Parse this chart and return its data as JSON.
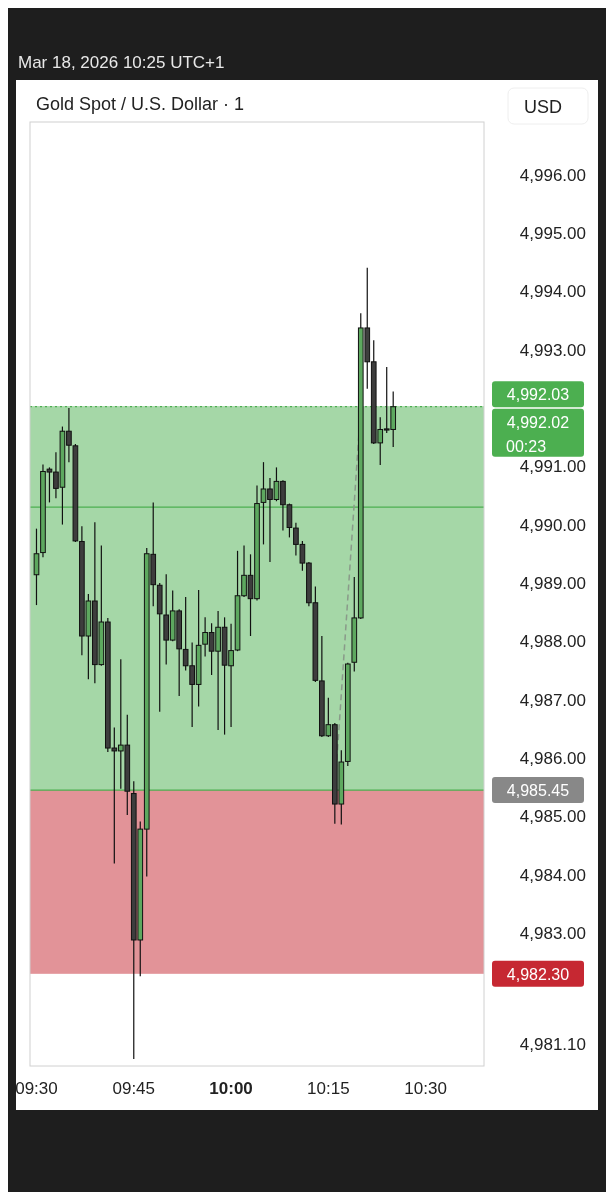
{
  "chart_data": {
    "type": "candlestick",
    "title": "Gold Spot / U.S. Dollar · 1",
    "subtitle": "Mar 18, 2026 10:25 UTC+1",
    "annotations": [
      "USD",
      "00:23"
    ],
    "x": [
      "2026-03-18T09:30",
      "2026-03-18T09:31",
      "2026-03-18T09:32",
      "2026-03-18T09:33",
      "2026-03-18T09:34",
      "2026-03-18T09:35",
      "2026-03-18T09:36",
      "2026-03-18T09:37",
      "2026-03-18T09:38",
      "2026-03-18T09:39",
      "2026-03-18T09:40",
      "2026-03-18T09:41",
      "2026-03-18T09:42",
      "2026-03-18T09:43",
      "2026-03-18T09:44",
      "2026-03-18T09:45",
      "2026-03-18T09:46",
      "2026-03-18T09:47",
      "2026-03-18T09:48",
      "2026-03-18T09:49",
      "2026-03-18T09:50",
      "2026-03-18T09:51",
      "2026-03-18T09:52",
      "2026-03-18T09:53",
      "2026-03-18T09:54",
      "2026-03-18T09:55",
      "2026-03-18T09:56",
      "2026-03-18T09:57",
      "2026-03-18T09:58",
      "2026-03-18T09:59",
      "2026-03-18T10:00",
      "2026-03-18T10:01",
      "2026-03-18T10:02",
      "2026-03-18T10:03",
      "2026-03-18T10:04",
      "2026-03-18T10:05",
      "2026-03-18T10:06",
      "2026-03-18T10:07",
      "2026-03-18T10:08",
      "2026-03-18T10:09",
      "2026-03-18T10:10",
      "2026-03-18T10:11",
      "2026-03-18T10:12",
      "2026-03-18T10:13",
      "2026-03-18T10:14",
      "2026-03-18T10:15",
      "2026-03-18T10:16",
      "2026-03-18T10:17",
      "2026-03-18T10:18",
      "2026-03-18T10:19",
      "2026-03-18T10:20",
      "2026-03-18T10:21",
      "2026-03-18T10:22",
      "2026-03-18T10:23",
      "2026-03-18T10:24",
      "2026-03-18T10:25"
    ],
    "ohlc": [
      [
        4989.14,
        4989.93,
        4988.62,
        4989.5
      ],
      [
        4989.52,
        4991.03,
        4989.44,
        4990.91
      ],
      [
        4990.95,
        4990.98,
        4990.38,
        4990.9
      ],
      [
        4990.9,
        4991.24,
        4990.45,
        4990.62
      ],
      [
        4990.64,
        4991.68,
        4990.0,
        4991.6
      ],
      [
        4991.6,
        4992.0,
        4991.07,
        4991.36
      ],
      [
        4991.35,
        4991.38,
        4989.7,
        4989.72
      ],
      [
        4989.71,
        4989.97,
        4987.76,
        4988.09
      ],
      [
        4988.09,
        4988.81,
        4987.35,
        4988.69
      ],
      [
        4988.69,
        4990.04,
        4987.28,
        4987.6
      ],
      [
        4987.6,
        4989.64,
        4987.58,
        4988.33
      ],
      [
        4988.33,
        4988.4,
        4986.1,
        4986.17
      ],
      [
        4986.17,
        4986.52,
        4984.19,
        4986.12
      ],
      [
        4986.12,
        4987.69,
        4985.47,
        4986.22
      ],
      [
        4986.22,
        4986.74,
        4985.02,
        4985.43
      ],
      [
        4985.39,
        4985.6,
        4980.84,
        4982.88
      ],
      [
        4982.88,
        4984.91,
        4982.26,
        4984.78
      ],
      [
        4984.78,
        4989.6,
        4983.97,
        4989.5
      ],
      [
        4989.49,
        4990.38,
        4988.6,
        4988.97
      ],
      [
        4988.96,
        4989.0,
        4986.79,
        4988.47
      ],
      [
        4988.45,
        4989.15,
        4987.6,
        4988.02
      ],
      [
        4988.02,
        4988.87,
        4988.0,
        4988.52
      ],
      [
        4988.52,
        4988.55,
        4987.06,
        4987.87
      ],
      [
        4987.86,
        4988.76,
        4987.5,
        4987.58
      ],
      [
        4987.58,
        4987.98,
        4986.53,
        4987.26
      ],
      [
        4987.26,
        4988.88,
        4986.88,
        4987.93
      ],
      [
        4987.95,
        4988.41,
        4987.74,
        4988.15
      ],
      [
        4988.15,
        4988.31,
        4987.42,
        4987.83
      ],
      [
        4987.83,
        4988.52,
        4986.48,
        4988.24
      ],
      [
        4988.24,
        4988.41,
        4986.4,
        4987.59
      ],
      [
        4987.58,
        4988.3,
        4986.53,
        4987.84
      ],
      [
        4987.85,
        4989.55,
        4987.83,
        4988.78
      ],
      [
        4988.78,
        4989.64,
        4988.76,
        4989.13
      ],
      [
        4989.13,
        4989.49,
        4988.09,
        4988.73
      ],
      [
        4988.73,
        4990.67,
        4988.7,
        4990.36
      ],
      [
        4990.38,
        4991.07,
        4989.66,
        4990.61
      ],
      [
        4990.61,
        4990.8,
        4989.36,
        4990.43
      ],
      [
        4990.43,
        4990.98,
        4990.4,
        4990.74
      ],
      [
        4990.74,
        4990.76,
        4989.9,
        4990.34
      ],
      [
        4990.34,
        4990.36,
        4989.78,
        4989.95
      ],
      [
        4989.94,
        4990.03,
        4989.47,
        4989.66
      ],
      [
        4989.66,
        4989.72,
        4989.21,
        4989.34
      ],
      [
        4989.34,
        4989.36,
        4988.6,
        4988.66
      ],
      [
        4988.66,
        4988.94,
        4987.3,
        4987.33
      ],
      [
        4987.32,
        4988.09,
        4986.36,
        4986.38
      ],
      [
        4986.38,
        4987.03,
        4986.36,
        4986.57
      ],
      [
        4986.57,
        4986.6,
        4984.87,
        4985.21
      ],
      [
        4985.21,
        4986.13,
        4984.86,
        4985.93
      ],
      [
        4985.94,
        4987.63,
        4985.86,
        4987.61
      ],
      [
        4987.64,
        4989.1,
        4987.48,
        4988.4
      ],
      [
        4988.4,
        4993.62,
        4988.38,
        4993.37
      ],
      [
        4993.37,
        4994.4,
        4992.33,
        4992.79
      ],
      [
        4992.79,
        4993.16,
        4991.38,
        4991.4
      ],
      [
        4991.4,
        4991.84,
        4991.02,
        4991.63
      ],
      [
        4991.64,
        4992.7,
        4991.57,
        4991.62
      ],
      [
        4991.63,
        4992.28,
        4991.33,
        4992.02
      ]
    ],
    "colors": [
      "#5da85f",
      "#5da85f",
      "#3d3d3d",
      "#3d3d3d",
      "#5da85f",
      "#3d3d3d",
      "#3d3d3d",
      "#3d3d3d",
      "#5da85f",
      "#3d3d3d",
      "#5da85f",
      "#3d3d3d",
      "#3d3d3d",
      "#5da85f",
      "#3d3d3d",
      "#3d3d3d",
      "#5da85f",
      "#5da85f",
      "#3d3d3d",
      "#3d3d3d",
      "#3d3d3d",
      "#5da85f",
      "#3d3d3d",
      "#3d3d3d",
      "#3d3d3d",
      "#5da85f",
      "#5da85f",
      "#3d3d3d",
      "#5da85f",
      "#3d3d3d",
      "#5da85f",
      "#5da85f",
      "#5da85f",
      "#3d3d3d",
      "#5da85f",
      "#5da85f",
      "#3d3d3d",
      "#5da85f",
      "#3d3d3d",
      "#3d3d3d",
      "#3d3d3d",
      "#3d3d3d",
      "#3d3d3d",
      "#3d3d3d",
      "#3d3d3d",
      "#5da85f",
      "#3d3d3d",
      "#5da85f",
      "#5da85f",
      "#5da85f",
      "#5da85f",
      "#3d3d3d",
      "#3d3d3d",
      "#5da85f",
      "#3d3d3d",
      "#5da85f"
    ],
    "series": [
      {
        "type": "line",
        "color": "#8a9a8a",
        "line_style": "dashed",
        "x": [
          "2026-03-18T10:16",
          "2026-03-18T10:20"
        ],
        "values": [
          4985.45,
          4992.03
        ]
      }
    ],
    "bands": [
      {
        "axis": "y",
        "from": 4985.45,
        "to": 4992.03,
        "label": "4,992.03",
        "color": "#4caf50"
      },
      {
        "axis": "y",
        "from": 4982.3,
        "to": 4985.45,
        "label": "4,982.30",
        "color": "#c62832"
      }
    ],
    "ref_lines": [
      {
        "axis": "y",
        "value": 4990.3,
        "color": "#4caf50",
        "line_style": "solid"
      },
      {
        "axis": "y",
        "value": 4985.45,
        "label": "4,985.45",
        "color": "#4caf50",
        "line_style": "solid"
      },
      {
        "axis": "y",
        "value": 4992.02,
        "label": "4,992.02",
        "color": "#4caf50",
        "line_style": "dotted"
      }
    ],
    "xlim": [
      "2026-03-18T09:29",
      "2026-03-18T10:39"
    ],
    "xticks": [
      {
        "value": "2026-03-18T09:30",
        "label": "09:30"
      },
      {
        "value": "2026-03-18T09:45",
        "label": "09:45"
      },
      {
        "value": "2026-03-18T10:00",
        "label": "10:00"
      },
      {
        "value": "2026-03-18T10:15",
        "label": "10:15"
      },
      {
        "value": "2026-03-18T10:30",
        "label": "10:30"
      }
    ],
    "ylim": [
      4980.72,
      4996.9
    ],
    "yticks": [
      {
        "value": 4981.1,
        "label": "4,981.10"
      },
      {
        "value": 4983,
        "label": "4,983.00"
      },
      {
        "value": 4984,
        "label": "4,984.00"
      },
      {
        "value": 4985,
        "label": "4,985.00"
      },
      {
        "value": 4986,
        "label": "4,986.00"
      },
      {
        "value": 4987,
        "label": "4,987.00"
      },
      {
        "value": 4988,
        "label": "4,988.00"
      },
      {
        "value": 4989,
        "label": "4,989.00"
      },
      {
        "value": 4990,
        "label": "4,990.00"
      },
      {
        "value": 4991,
        "label": "4,991.00"
      },
      {
        "value": 4993,
        "label": "4,993.00"
      },
      {
        "value": 4994,
        "label": "4,994.00"
      },
      {
        "value": 4995,
        "label": "4,995.00"
      },
      {
        "value": 4996,
        "label": "4,996.00"
      }
    ]
  }
}
